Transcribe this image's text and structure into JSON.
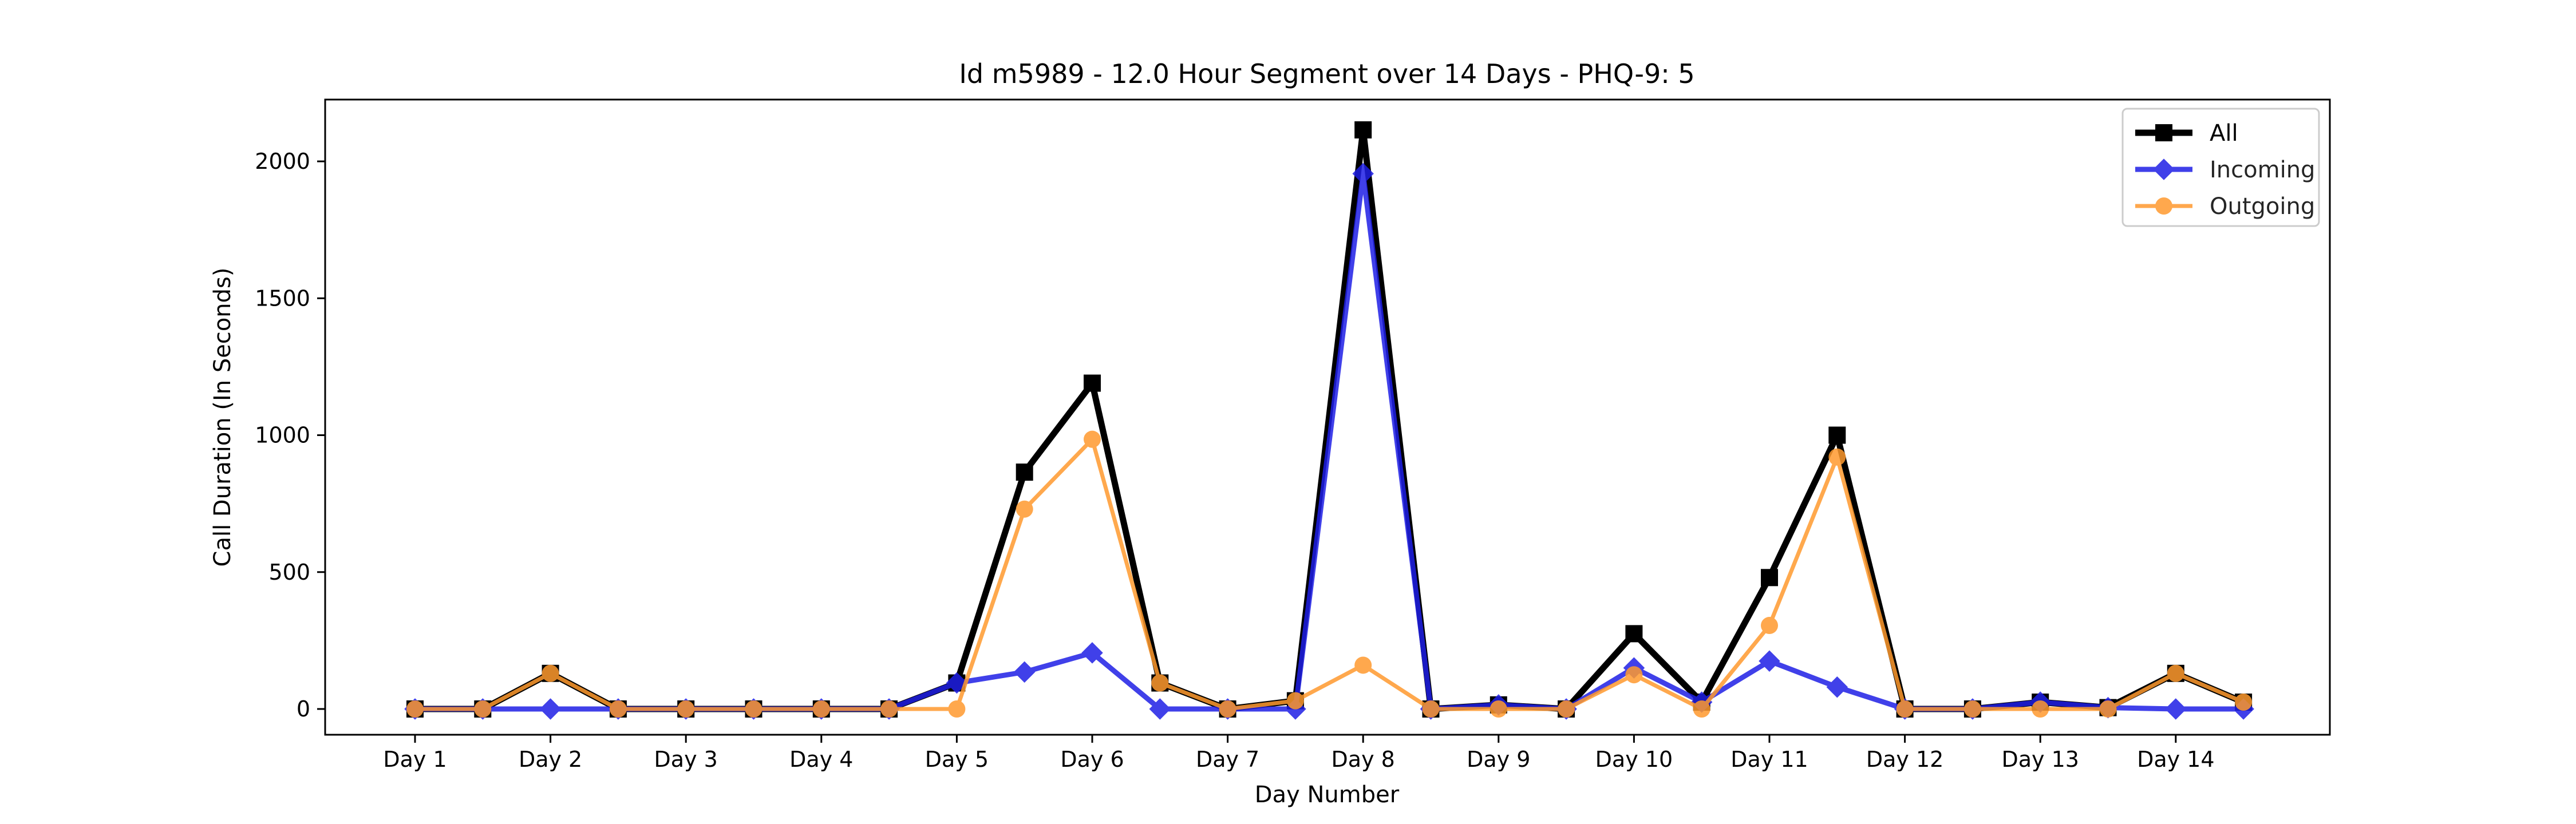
{
  "chart_data": {
    "type": "line",
    "title": "Id m5989 - 12.0 Hour Segment over 14 Days - PHQ-9: 5",
    "xlabel": "Day Number",
    "ylabel": "Call Duration (In Seconds)",
    "ylim": [
      -100,
      2220
    ],
    "yticks": [
      0,
      500,
      1000,
      1500,
      2000
    ],
    "xticks": [
      "Day 1",
      "Day 2",
      "Day 3",
      "Day 4",
      "Day 5",
      "Day 6",
      "Day 7",
      "Day 8",
      "Day 9",
      "Day 10",
      "Day 11",
      "Day 12",
      "Day 13",
      "Day 14"
    ],
    "grid": false,
    "legend_position": "top-right",
    "x": [
      1,
      1.5,
      2,
      2.5,
      3,
      3.5,
      4,
      4.5,
      5,
      5.5,
      6,
      6.5,
      7,
      7.5,
      8,
      8.5,
      9,
      9.5,
      10,
      10.5,
      11,
      11.5,
      12,
      12.5,
      13,
      13.5,
      14,
      14.5
    ],
    "series": [
      {
        "name": "All",
        "color": "#000000",
        "marker": "square",
        "values": [
          0,
          0,
          130,
          0,
          0,
          0,
          0,
          0,
          95,
          865,
          1190,
          95,
          0,
          30,
          2115,
          0,
          15,
          0,
          275,
          25,
          480,
          1000,
          0,
          0,
          25,
          5,
          130,
          25
        ]
      },
      {
        "name": "Incoming",
        "color": "#1f1fe6",
        "marker": "diamond",
        "values": [
          0,
          0,
          0,
          0,
          0,
          0,
          0,
          0,
          95,
          135,
          205,
          0,
          0,
          0,
          1955,
          0,
          15,
          0,
          150,
          25,
          175,
          80,
          0,
          0,
          25,
          5,
          0,
          0
        ]
      },
      {
        "name": "Outgoing",
        "color": "#ff9a2e",
        "marker": "circle",
        "values": [
          0,
          0,
          130,
          0,
          0,
          0,
          0,
          0,
          0,
          730,
          985,
          95,
          0,
          30,
          160,
          0,
          0,
          0,
          125,
          0,
          305,
          920,
          0,
          0,
          0,
          0,
          130,
          25
        ]
      }
    ]
  }
}
